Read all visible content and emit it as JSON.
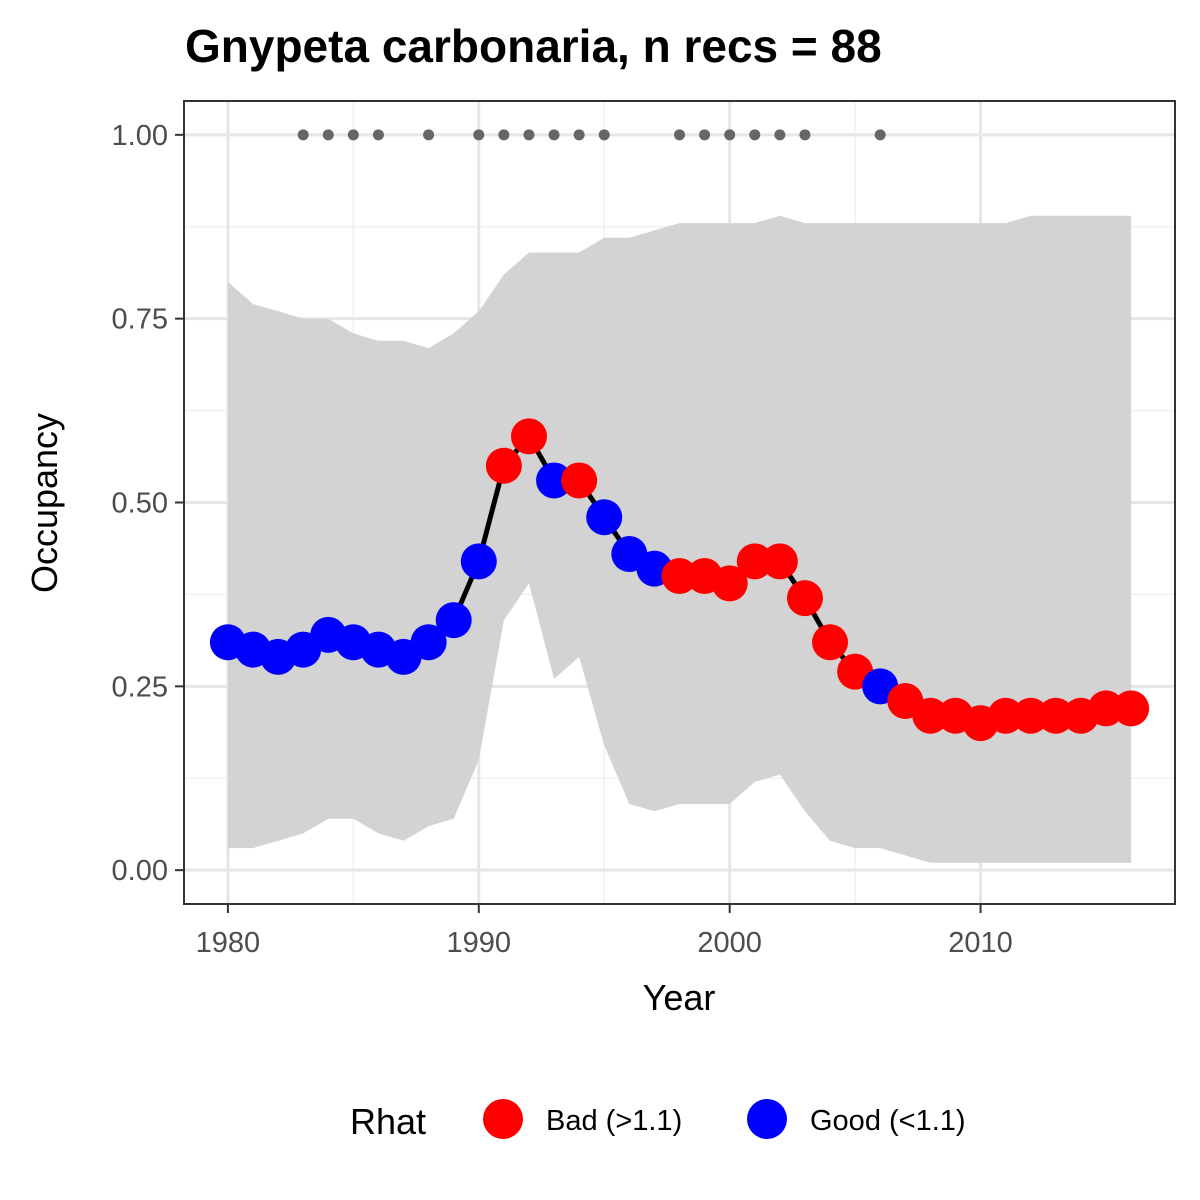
{
  "chart_data": {
    "type": "line",
    "title": "Gnypeta carbonaria, n recs = 88",
    "xlabel": "Year",
    "ylabel": "Occupancy",
    "xlim": [
      1978.25,
      2017.75
    ],
    "ylim": [
      -0.046,
      1.046
    ],
    "x_ticks": [
      1980,
      1990,
      2000,
      2010
    ],
    "x_tick_labels": [
      "1980",
      "1990",
      "2000",
      "2010"
    ],
    "y_ticks": [
      0,
      0.25,
      0.5,
      0.75,
      1.0
    ],
    "y_tick_labels": [
      "0.00",
      "0.25",
      "0.50",
      "0.75",
      "1.00"
    ],
    "grid": true,
    "legend": {
      "title": "Rhat",
      "position": "bottom",
      "items": [
        {
          "label": "Bad (>1.1)",
          "color": "#ff0000"
        },
        {
          "label": "Good (<1.1)",
          "color": "#0000ff"
        }
      ]
    },
    "colors": {
      "bad": "#ff0000",
      "good": "#0000ff",
      "line": "#000000",
      "ribbon": "#d3d3d3",
      "record_dots": "#666666"
    },
    "x": [
      1980,
      1981,
      1982,
      1983,
      1984,
      1985,
      1986,
      1987,
      1988,
      1989,
      1990,
      1991,
      1992,
      1993,
      1994,
      1995,
      1996,
      1997,
      1998,
      1999,
      2000,
      2001,
      2002,
      2003,
      2004,
      2005,
      2006,
      2007,
      2008,
      2009,
      2010,
      2011,
      2012,
      2013,
      2014,
      2015,
      2016
    ],
    "occupancy": [
      0.31,
      0.3,
      0.29,
      0.3,
      0.32,
      0.31,
      0.3,
      0.29,
      0.31,
      0.34,
      0.42,
      0.55,
      0.59,
      0.53,
      0.53,
      0.48,
      0.43,
      0.41,
      0.4,
      0.4,
      0.39,
      0.42,
      0.42,
      0.37,
      0.31,
      0.27,
      0.25,
      0.23,
      0.21,
      0.21,
      0.2,
      0.21,
      0.21,
      0.21,
      0.21,
      0.22,
      0.22
    ],
    "rhat": [
      "Good",
      "Good",
      "Good",
      "Good",
      "Good",
      "Good",
      "Good",
      "Good",
      "Good",
      "Good",
      "Good",
      "Bad",
      "Bad",
      "Good",
      "Bad",
      "Good",
      "Good",
      "Good",
      "Bad",
      "Bad",
      "Bad",
      "Bad",
      "Bad",
      "Bad",
      "Bad",
      "Bad",
      "Good",
      "Bad",
      "Bad",
      "Bad",
      "Bad",
      "Bad",
      "Bad",
      "Bad",
      "Bad",
      "Bad",
      "Bad"
    ],
    "lower": [
      0.03,
      0.03,
      0.04,
      0.05,
      0.07,
      0.07,
      0.05,
      0.04,
      0.06,
      0.07,
      0.15,
      0.34,
      0.39,
      0.26,
      0.29,
      0.17,
      0.09,
      0.08,
      0.09,
      0.09,
      0.09,
      0.12,
      0.13,
      0.08,
      0.04,
      0.03,
      0.03,
      0.02,
      0.01,
      0.01,
      0.01,
      0.01,
      0.01,
      0.01,
      0.01,
      0.01,
      0.01
    ],
    "upper": [
      0.8,
      0.77,
      0.76,
      0.75,
      0.75,
      0.73,
      0.72,
      0.72,
      0.71,
      0.73,
      0.76,
      0.81,
      0.84,
      0.84,
      0.84,
      0.86,
      0.86,
      0.87,
      0.88,
      0.88,
      0.88,
      0.88,
      0.89,
      0.88,
      0.88,
      0.88,
      0.88,
      0.88,
      0.88,
      0.88,
      0.88,
      0.88,
      0.89,
      0.89,
      0.89,
      0.89,
      0.89
    ],
    "record_years": [
      1983,
      1984,
      1985,
      1986,
      1988,
      1990,
      1991,
      1992,
      1993,
      1994,
      1995,
      1998,
      1999,
      2000,
      2001,
      2002,
      2003,
      2006
    ],
    "record_y": 1.0
  }
}
